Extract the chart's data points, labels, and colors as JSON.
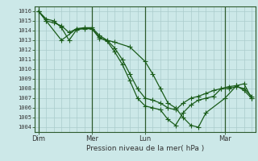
{
  "background_color": "#cce8e8",
  "grid_color": "#aacccc",
  "line_color": "#1a5c1a",
  "marker_color": "#1a5c1a",
  "xlabel": "Pression niveau de la mer( hPa )",
  "ylim": [
    1003.5,
    1016.5
  ],
  "yticks": [
    1004,
    1005,
    1006,
    1007,
    1008,
    1009,
    1010,
    1011,
    1012,
    1013,
    1014,
    1015,
    1016
  ],
  "xtick_labels": [
    "Dim",
    "Mer",
    "Lun",
    "Mar"
  ],
  "xtick_positions": [
    0,
    56,
    112,
    196
  ],
  "xlim": [
    -4,
    228
  ],
  "vline_positions": [
    0,
    56,
    112,
    196
  ],
  "series": [
    {
      "x": [
        0,
        8,
        16,
        24,
        32,
        40,
        48,
        56,
        64,
        72,
        80,
        88,
        96,
        104,
        112,
        120,
        128,
        136,
        144,
        152,
        160,
        168,
        176,
        184,
        192,
        200,
        208,
        216,
        224
      ],
      "y": [
        1016,
        1015.2,
        1015.0,
        1014.3,
        1013.0,
        1014.1,
        1014.2,
        1014.2,
        1013.3,
        1012.9,
        1011.8,
        1010.5,
        1008.8,
        1007.0,
        1006.2,
        1006.0,
        1005.8,
        1004.8,
        1004.2,
        1005.5,
        1006.3,
        1006.8,
        1007.0,
        1007.2,
        1008.0,
        1008.0,
        1008.2,
        1008.0,
        1007.2
      ],
      "marker": "+",
      "marker_size": 4,
      "linewidth": 0.9
    },
    {
      "x": [
        0,
        8,
        16,
        24,
        32,
        40,
        48,
        56,
        64,
        72,
        80,
        88,
        96,
        104,
        112,
        120,
        128,
        136,
        144,
        152,
        160,
        168,
        176,
        184,
        192,
        200,
        208,
        216,
        224
      ],
      "y": [
        1016,
        1015.0,
        1014.8,
        1014.5,
        1013.8,
        1014.2,
        1014.3,
        1014.3,
        1013.5,
        1013.0,
        1012.2,
        1011.0,
        1009.5,
        1008.0,
        1007.0,
        1006.8,
        1006.5,
        1006.0,
        1005.8,
        1006.5,
        1007.0,
        1007.2,
        1007.5,
        1007.8,
        1008.0,
        1008.2,
        1008.3,
        1007.8,
        1007.0
      ],
      "marker": "+",
      "marker_size": 4,
      "linewidth": 0.9
    },
    {
      "x": [
        0,
        8,
        24,
        40,
        56,
        64,
        80,
        96,
        112,
        120,
        128,
        136,
        144,
        152,
        160,
        168,
        176,
        196,
        208,
        216,
        224
      ],
      "y": [
        1016,
        1015.0,
        1013.0,
        1014.2,
        1014.2,
        1013.2,
        1012.8,
        1012.3,
        1010.8,
        1009.5,
        1008.0,
        1006.5,
        1006.0,
        1005.0,
        1004.2,
        1004.0,
        1005.5,
        1007.0,
        1008.3,
        1008.5,
        1007.0
      ],
      "marker": "+",
      "marker_size": 4,
      "linewidth": 0.9
    }
  ]
}
